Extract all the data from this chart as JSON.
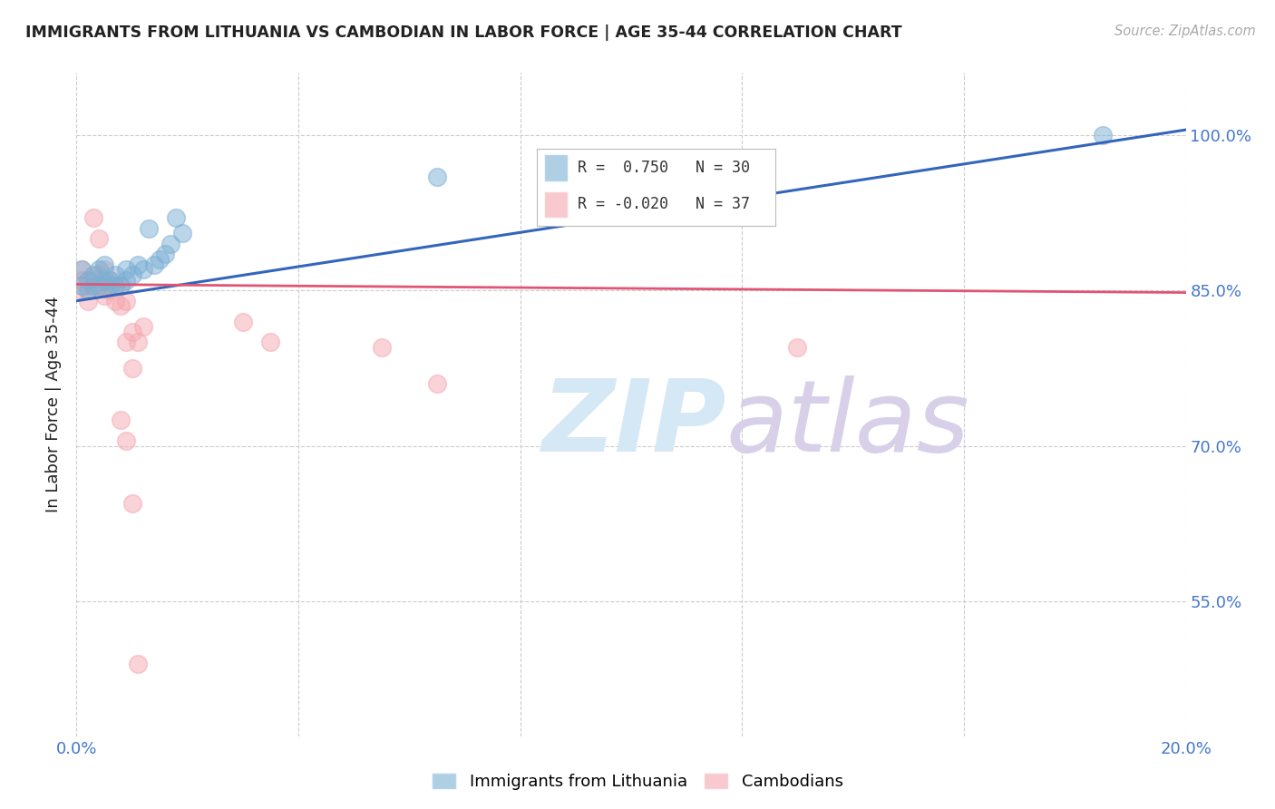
{
  "title": "IMMIGRANTS FROM LITHUANIA VS CAMBODIAN IN LABOR FORCE | AGE 35-44 CORRELATION CHART",
  "source": "Source: ZipAtlas.com",
  "ylabel": "In Labor Force | Age 35-44",
  "ytick_labels": [
    "100.0%",
    "85.0%",
    "70.0%",
    "55.0%"
  ],
  "ytick_values": [
    1.0,
    0.85,
    0.7,
    0.55
  ],
  "xlim": [
    0.0,
    0.2
  ],
  "ylim": [
    0.42,
    1.06
  ],
  "legend_r_blue": "0.750",
  "legend_n_blue": "30",
  "legend_r_pink": "-0.020",
  "legend_n_pink": "37",
  "blue_color": "#7BAFD4",
  "pink_color": "#F4A8B0",
  "blue_line_color": "#3366BB",
  "pink_line_color": "#E05575",
  "blue_scatter": [
    [
      0.001,
      0.87
    ],
    [
      0.001,
      0.855
    ],
    [
      0.002,
      0.86
    ],
    [
      0.002,
      0.85
    ],
    [
      0.003,
      0.855
    ],
    [
      0.003,
      0.865
    ],
    [
      0.004,
      0.87
    ],
    [
      0.004,
      0.855
    ],
    [
      0.005,
      0.86
    ],
    [
      0.005,
      0.875
    ],
    [
      0.006,
      0.855
    ],
    [
      0.006,
      0.86
    ],
    [
      0.007,
      0.855
    ],
    [
      0.007,
      0.865
    ],
    [
      0.008,
      0.855
    ],
    [
      0.009,
      0.86
    ],
    [
      0.009,
      0.87
    ],
    [
      0.01,
      0.865
    ],
    [
      0.011,
      0.875
    ],
    [
      0.012,
      0.87
    ],
    [
      0.013,
      0.91
    ],
    [
      0.014,
      0.875
    ],
    [
      0.015,
      0.88
    ],
    [
      0.016,
      0.885
    ],
    [
      0.017,
      0.895
    ],
    [
      0.018,
      0.92
    ],
    [
      0.019,
      0.905
    ],
    [
      0.065,
      0.96
    ],
    [
      0.115,
      0.975
    ],
    [
      0.185,
      1.0
    ]
  ],
  "pink_scatter": [
    [
      0.001,
      0.87
    ],
    [
      0.001,
      0.86
    ],
    [
      0.001,
      0.855
    ],
    [
      0.001,
      0.85
    ],
    [
      0.002,
      0.86
    ],
    [
      0.002,
      0.855
    ],
    [
      0.002,
      0.84
    ],
    [
      0.003,
      0.86
    ],
    [
      0.003,
      0.92
    ],
    [
      0.003,
      0.855
    ],
    [
      0.004,
      0.9
    ],
    [
      0.004,
      0.855
    ],
    [
      0.004,
      0.865
    ],
    [
      0.005,
      0.87
    ],
    [
      0.005,
      0.855
    ],
    [
      0.005,
      0.845
    ],
    [
      0.006,
      0.86
    ],
    [
      0.006,
      0.85
    ],
    [
      0.007,
      0.855
    ],
    [
      0.007,
      0.84
    ],
    [
      0.008,
      0.855
    ],
    [
      0.008,
      0.835
    ],
    [
      0.009,
      0.84
    ],
    [
      0.009,
      0.8
    ],
    [
      0.01,
      0.81
    ],
    [
      0.01,
      0.775
    ],
    [
      0.011,
      0.8
    ],
    [
      0.012,
      0.815
    ],
    [
      0.03,
      0.82
    ],
    [
      0.035,
      0.8
    ],
    [
      0.055,
      0.795
    ],
    [
      0.065,
      0.76
    ],
    [
      0.13,
      0.795
    ],
    [
      0.008,
      0.725
    ],
    [
      0.009,
      0.705
    ],
    [
      0.01,
      0.645
    ],
    [
      0.011,
      0.49
    ]
  ],
  "blue_line": [
    [
      0.0,
      0.84
    ],
    [
      0.2,
      1.005
    ]
  ],
  "pink_line": [
    [
      0.0,
      0.856
    ],
    [
      0.2,
      0.848
    ]
  ],
  "background_color": "#FFFFFF",
  "grid_color": "#CCCCCC",
  "axis_label_color": "#4477CC",
  "title_color": "#222222",
  "watermark_zip_color": "#D5E8F5",
  "watermark_atlas_color": "#D8D0E8"
}
